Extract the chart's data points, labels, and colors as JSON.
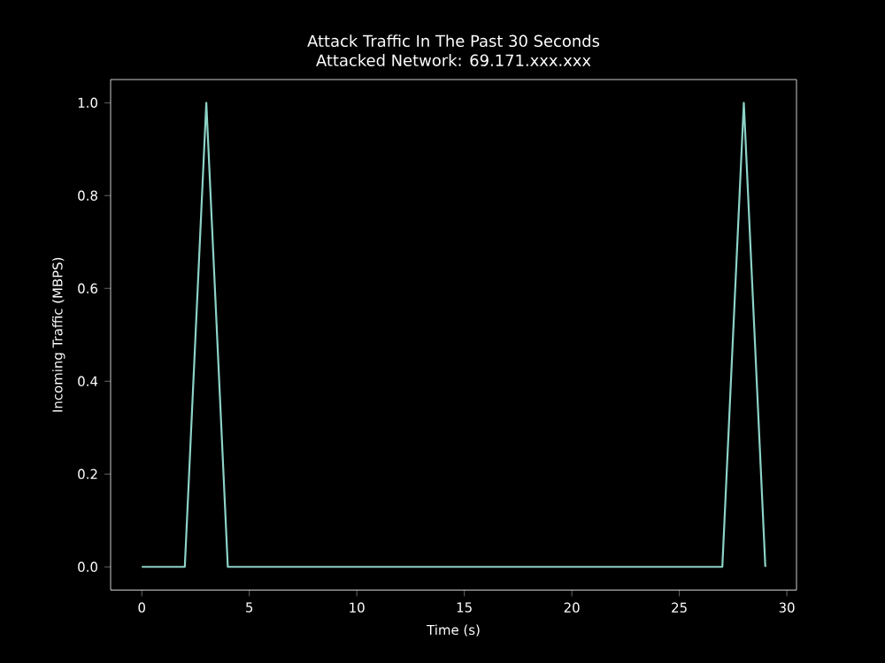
{
  "chart_data": {
    "type": "line",
    "title": "Attack Traffic In The Past 30 Seconds",
    "subtitle": "Attacked Network: 69.171.xxx.xxx",
    "xlabel": "Time (s)",
    "ylabel": "Incoming Traffic (MBPS)",
    "x": [
      0,
      1,
      2,
      3,
      4,
      5,
      6,
      7,
      8,
      9,
      10,
      11,
      12,
      13,
      14,
      15,
      16,
      17,
      18,
      19,
      20,
      21,
      22,
      23,
      24,
      25,
      26,
      27,
      28,
      29
    ],
    "series": [
      {
        "color": "#8dd3c7",
        "values": [
          0,
          0,
          0,
          1,
          0,
          0,
          0,
          0,
          0,
          0,
          0,
          0,
          0,
          0,
          0,
          0,
          0,
          0,
          0,
          0,
          0,
          0,
          0,
          0,
          0,
          0,
          0,
          0,
          1,
          0
        ]
      }
    ],
    "xlim": [
      -1.45,
      30.45
    ],
    "ylim": [
      -0.05,
      1.05
    ],
    "xticks": [
      0,
      5,
      10,
      15,
      20,
      25,
      30
    ],
    "yticks": [
      {
        "value": 0,
        "label": "0.0"
      },
      {
        "value": 0.2,
        "label": "0.2"
      },
      {
        "value": 0.4,
        "label": "0.4"
      },
      {
        "value": 0.6,
        "label": "0.6"
      },
      {
        "value": 0.8,
        "label": "0.8"
      },
      {
        "value": 1.0,
        "label": "1.0"
      }
    ],
    "grid": false,
    "marker": "none",
    "line_style": "solid"
  }
}
